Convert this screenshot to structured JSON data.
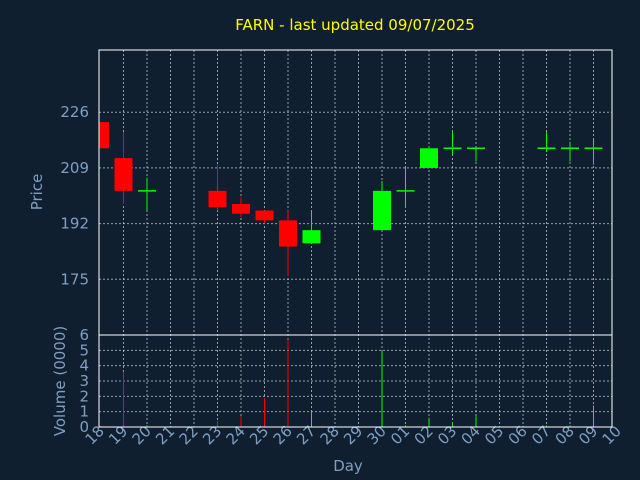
{
  "chart_data": {
    "type": "candlestick",
    "title": "FARN - last updated 09/07/2025",
    "xlabel": "Day",
    "price_axis": {
      "label": "Price",
      "ticks": [
        175,
        192,
        209,
        226
      ],
      "ylim": [
        158,
        245
      ]
    },
    "volume_axis": {
      "label": "Volume (0000)",
      "ticks": [
        0,
        1,
        2,
        3,
        4,
        5,
        6
      ],
      "ylim": [
        0,
        6
      ]
    },
    "grid": true,
    "up_color": "#00ff00",
    "down_color": "#ff0000",
    "x_ticks": [
      "18",
      "19",
      "20",
      "21",
      "22",
      "23",
      "24",
      "25",
      "26",
      "27",
      "28",
      "29",
      "30",
      "01",
      "02",
      "03",
      "04",
      "05",
      "06",
      "07",
      "08",
      "09",
      "10"
    ],
    "candles": [
      {
        "day": "18",
        "open": 223,
        "high": 223,
        "low": 215,
        "close": 215,
        "volume": 0.1
      },
      {
        "day": "19",
        "open": 212,
        "high": 220,
        "low": 198,
        "close": 202,
        "volume": 3.6
      },
      {
        "day": "20",
        "open": 202,
        "high": 206,
        "low": 196,
        "close": 202,
        "volume": 0.1
      },
      {
        "day": "23",
        "open": 202,
        "high": 210,
        "low": 196,
        "close": 197,
        "volume": 0.4
      },
      {
        "day": "24",
        "open": 198,
        "high": 200,
        "low": 194,
        "close": 195,
        "volume": 0.7
      },
      {
        "day": "25",
        "open": 196,
        "high": 196,
        "low": 192,
        "close": 193,
        "volume": 1.9
      },
      {
        "day": "26",
        "open": 193,
        "high": 196,
        "low": 176,
        "close": 185,
        "volume": 5.7
      },
      {
        "day": "27",
        "open": 186,
        "high": 196,
        "low": 186,
        "close": 190,
        "volume": 1.0
      },
      {
        "day": "30",
        "open": 190,
        "high": 205,
        "low": 190,
        "close": 202,
        "volume": 4.9
      },
      {
        "day": "01",
        "open": 202,
        "high": 209,
        "low": 197,
        "close": 202,
        "volume": 0.1
      },
      {
        "day": "02",
        "open": 209,
        "high": 215,
        "low": 209,
        "close": 215,
        "volume": 0.6
      },
      {
        "day": "03",
        "open": 215,
        "high": 220,
        "low": 213,
        "close": 215,
        "volume": 0.2
      },
      {
        "day": "04",
        "open": 215,
        "high": 215,
        "low": 211,
        "close": 215,
        "volume": 0.7
      },
      {
        "day": "07",
        "open": 215,
        "high": 220,
        "low": 214,
        "close": 215,
        "volume": 0.1
      },
      {
        "day": "08",
        "open": 215,
        "high": 217,
        "low": 211,
        "close": 215,
        "volume": 0.1
      },
      {
        "day": "09",
        "open": 215,
        "high": 218,
        "low": 210,
        "close": 215,
        "volume": 1.4
      }
    ]
  }
}
